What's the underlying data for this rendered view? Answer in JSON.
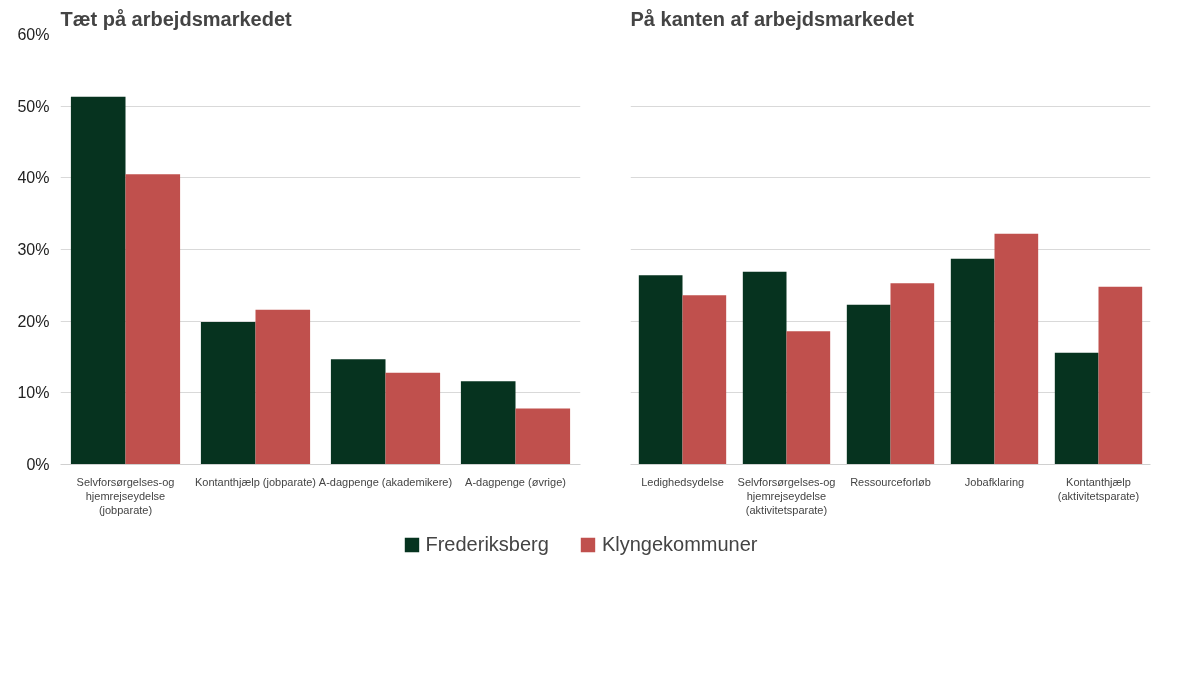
{
  "chart_data": [
    {
      "type": "bar",
      "title": "Tæt på arbejdsmarkedet",
      "categories": [
        "Selvforsørgelses-og hjemrejseydelse (jobparate)",
        "Kontanthjælp (jobparate)",
        "A-dagpenge (akademikere)",
        "A-dagpenge (øvrige)"
      ],
      "series": [
        {
          "color": "#06331f",
          "values": [
            51.3,
            19.9,
            14.7,
            11.6
          ]
        },
        {
          "color": "#c0504d",
          "values": [
            40.5,
            21.6,
            12.8,
            7.8
          ]
        }
      ],
      "ylim": [
        0,
        60
      ],
      "yticks": [
        {
          "value": 0,
          "label": "0%"
        },
        {
          "value": 10,
          "label": "10%"
        },
        {
          "value": 20,
          "label": "20%"
        },
        {
          "value": 30,
          "label": "30%"
        },
        {
          "value": 40,
          "label": "40%"
        },
        {
          "value": 50,
          "label": "50%"
        },
        {
          "value": 60,
          "label": "60%"
        }
      ],
      "grid": "y"
    },
    {
      "type": "bar",
      "title": "På kanten af arbejdsmarkedet",
      "categories": [
        "Ledighedsydelse",
        "Selvforsørgelses-og hjemrejseydelse (aktivitetsparate)",
        "Ressourceforløb",
        "Jobafklaring",
        "Kontanthjælp (aktivitetsparate)"
      ],
      "series": [
        {
          "name": "Frederiksberg",
          "color": "#06331f",
          "values": [
            26.4,
            26.9,
            22.3,
            28.7,
            15.6
          ]
        },
        {
          "name": "Klyngekommuner",
          "color": "#c0504d",
          "values": [
            23.6,
            18.6,
            25.3,
            32.2,
            24.8
          ]
        }
      ],
      "ylim": [
        0,
        60
      ],
      "yticks": [
        0,
        10,
        20,
        30,
        40,
        50,
        60
      ],
      "grid": "y",
      "tick_labels": "x",
      "legend": "bottom"
    }
  ]
}
